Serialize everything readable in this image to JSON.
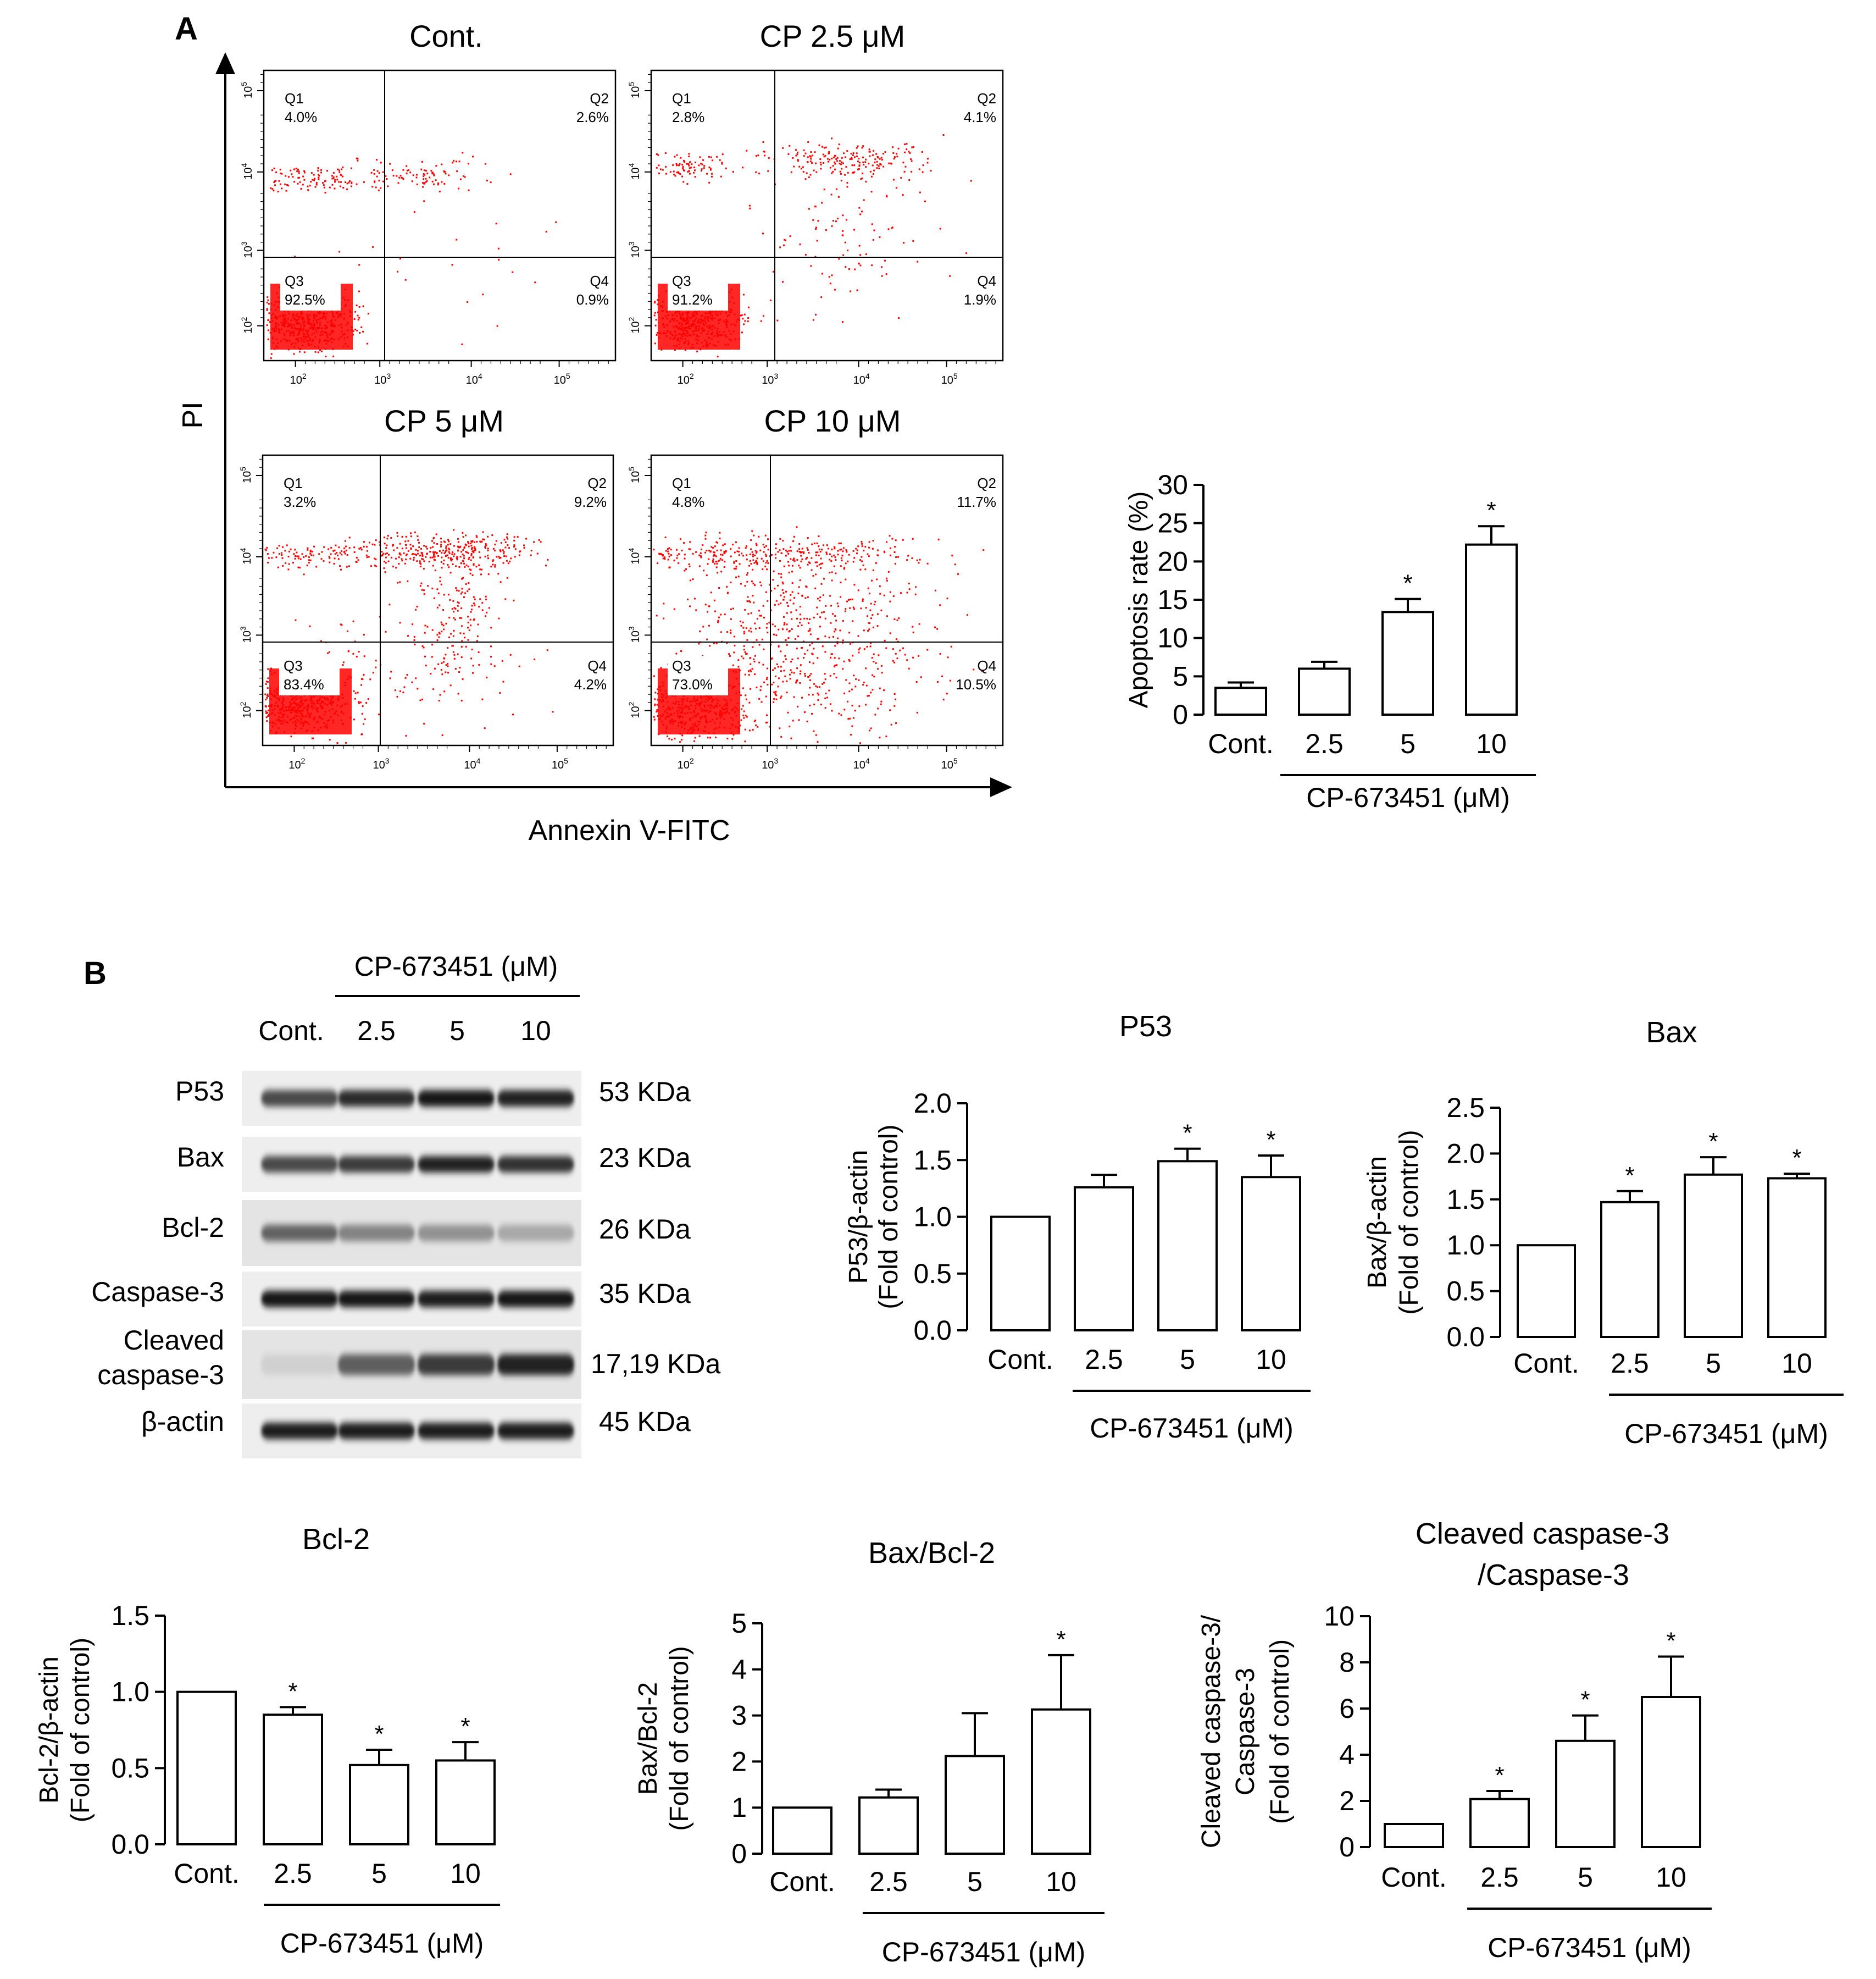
{
  "panels": {
    "a": "A",
    "b": "B"
  },
  "flow": {
    "x_axis_label": "Annexin V-FITC",
    "y_axis_label": "PI",
    "dot_color": "#ff0000",
    "decades": [
      "10",
      "10",
      "10",
      "10"
    ],
    "exponents": [
      "2",
      "3",
      "4",
      "5"
    ],
    "plots": [
      {
        "title": "Cont.",
        "q1": "Q1",
        "q1_value": "4.0%",
        "q2": "Q2",
        "q2_value": "2.6%",
        "q3": "Q3",
        "q3_value": "92.5%",
        "q4": "Q4",
        "q4_value": "0.9%"
      },
      {
        "title": "CP 2.5 μM",
        "q1": "Q1",
        "q1_value": "2.8%",
        "q2": "Q2",
        "q2_value": "4.1%",
        "q3": "Q3",
        "q3_value": "91.2%",
        "q4": "Q4",
        "q4_value": "1.9%"
      },
      {
        "title": "CP 5 μM",
        "q1": "Q1",
        "q1_value": "3.2%",
        "q2": "Q2",
        "q2_value": "9.2%",
        "q3": "Q3",
        "q3_value": "83.4%",
        "q4": "Q4",
        "q4_value": "4.2%"
      },
      {
        "title": "CP 10 μM",
        "q1": "Q1",
        "q1_value": "4.8%",
        "q2": "Q2",
        "q2_value": "11.7%",
        "q3": "Q3",
        "q3_value": "73.0%",
        "q4": "Q4",
        "q4_value": "10.5%"
      }
    ]
  },
  "blot": {
    "treatment_header": "CP-673451 (μM)",
    "lanes": [
      "Cont.",
      "2.5",
      "5",
      "10"
    ],
    "proteins": [
      "P53",
      "Bax",
      "Bcl-2",
      "Caspase-3",
      "Cleaved",
      "caspase-3",
      "β-actin"
    ],
    "sizes": [
      "53 KDa",
      "23 KDa",
      "26 KDa",
      "35 KDa",
      "17,19 KDa",
      "45 KDa"
    ],
    "band_intensity": {
      "P53": [
        0.72,
        0.86,
        0.95,
        0.9
      ],
      "Bax": [
        0.72,
        0.78,
        0.88,
        0.82
      ],
      "Bcl-2": [
        0.6,
        0.45,
        0.38,
        0.28
      ],
      "Caspase-3": [
        0.95,
        0.93,
        0.92,
        0.93
      ],
      "Cleaved caspase-3": [
        0.1,
        0.62,
        0.78,
        0.9
      ],
      "β-actin": [
        0.92,
        0.92,
        0.92,
        0.92
      ]
    }
  },
  "chart_data": [
    {
      "type": "bar",
      "title": "",
      "ylabel": "Apoptosis rate (%)",
      "xlabel": "CP-673451 (μM)",
      "categories": [
        "Cont.",
        "2.5",
        "5",
        "10"
      ],
      "values": [
        3.5,
        6.0,
        13.4,
        22.2
      ],
      "errors": [
        0.7,
        0.9,
        1.7,
        2.4
      ],
      "significance": [
        "",
        "",
        "*",
        "*"
      ],
      "ylim": [
        0,
        30
      ],
      "yticks": [
        "0",
        "5",
        "10",
        "15",
        "20",
        "25",
        "30"
      ]
    },
    {
      "type": "bar",
      "title": "P53",
      "ylabel": "P53/β-actin",
      "ylabel2": "(Fold of control)",
      "xlabel": "CP-673451 (μM)",
      "categories": [
        "Cont.",
        "2.5",
        "5",
        "10"
      ],
      "values": [
        1.0,
        1.26,
        1.49,
        1.35
      ],
      "errors": [
        0,
        0.11,
        0.11,
        0.19
      ],
      "significance": [
        "",
        "",
        "*",
        "*"
      ],
      "ylim": [
        0,
        2.0
      ],
      "yticks": [
        "0.0",
        "0.5",
        "1.0",
        "1.5",
        "2.0"
      ]
    },
    {
      "type": "bar",
      "title": "Bax",
      "ylabel": "Bax/β-actin",
      "ylabel2": "(Fold of control)",
      "xlabel": "CP-673451 (μM)",
      "categories": [
        "Cont.",
        "2.5",
        "5",
        "10"
      ],
      "values": [
        1.0,
        1.47,
        1.77,
        1.73
      ],
      "errors": [
        0,
        0.12,
        0.19,
        0.05
      ],
      "significance": [
        "",
        "*",
        "*",
        "*"
      ],
      "ylim": [
        0,
        2.5
      ],
      "yticks": [
        "0.0",
        "0.5",
        "1.0",
        "1.5",
        "2.0",
        "2.5"
      ]
    },
    {
      "type": "bar",
      "title": "Bcl-2",
      "ylabel": "Bcl-2/β-actin",
      "ylabel2": "(Fold of control)",
      "xlabel": "CP-673451 (μM)",
      "categories": [
        "Cont.",
        "2.5",
        "5",
        "10"
      ],
      "values": [
        1.0,
        0.85,
        0.52,
        0.55
      ],
      "errors": [
        0,
        0.05,
        0.1,
        0.12
      ],
      "significance": [
        "",
        "*",
        "*",
        "*"
      ],
      "ylim": [
        0,
        1.5
      ],
      "yticks": [
        "0.0",
        "0.5",
        "1.0",
        "1.5"
      ]
    },
    {
      "type": "bar",
      "title": "Bax/Bcl-2",
      "ylabel": "Bax/Bcl-2",
      "ylabel2": "(Fold of control)",
      "xlabel": "CP-673451 (μM)",
      "categories": [
        "Cont.",
        "2.5",
        "5",
        "10"
      ],
      "values": [
        1.0,
        1.22,
        2.12,
        3.13
      ],
      "errors": [
        0,
        0.17,
        0.93,
        1.18
      ],
      "significance": [
        "",
        "",
        "",
        "*"
      ],
      "ylim": [
        0,
        5
      ],
      "yticks": [
        "0",
        "1",
        "2",
        "3",
        "4",
        "5"
      ]
    },
    {
      "type": "bar",
      "title": "Cleaved caspase-3",
      "title2": "/Caspase-3",
      "ylabel": "Cleaved caspase-3/",
      "ylabel2": "Caspase-3",
      "ylabel3": "(Fold of control)",
      "xlabel": "CP-673451 (μM)",
      "categories": [
        "Cont.",
        "2.5",
        "5",
        "10"
      ],
      "values": [
        1.0,
        2.08,
        4.6,
        6.5
      ],
      "errors": [
        0,
        0.35,
        1.1,
        1.75
      ],
      "significance": [
        "",
        "*",
        "*",
        "*"
      ],
      "ylim": [
        0,
        10
      ],
      "yticks": [
        "0",
        "2",
        "4",
        "6",
        "8",
        "10"
      ]
    }
  ]
}
